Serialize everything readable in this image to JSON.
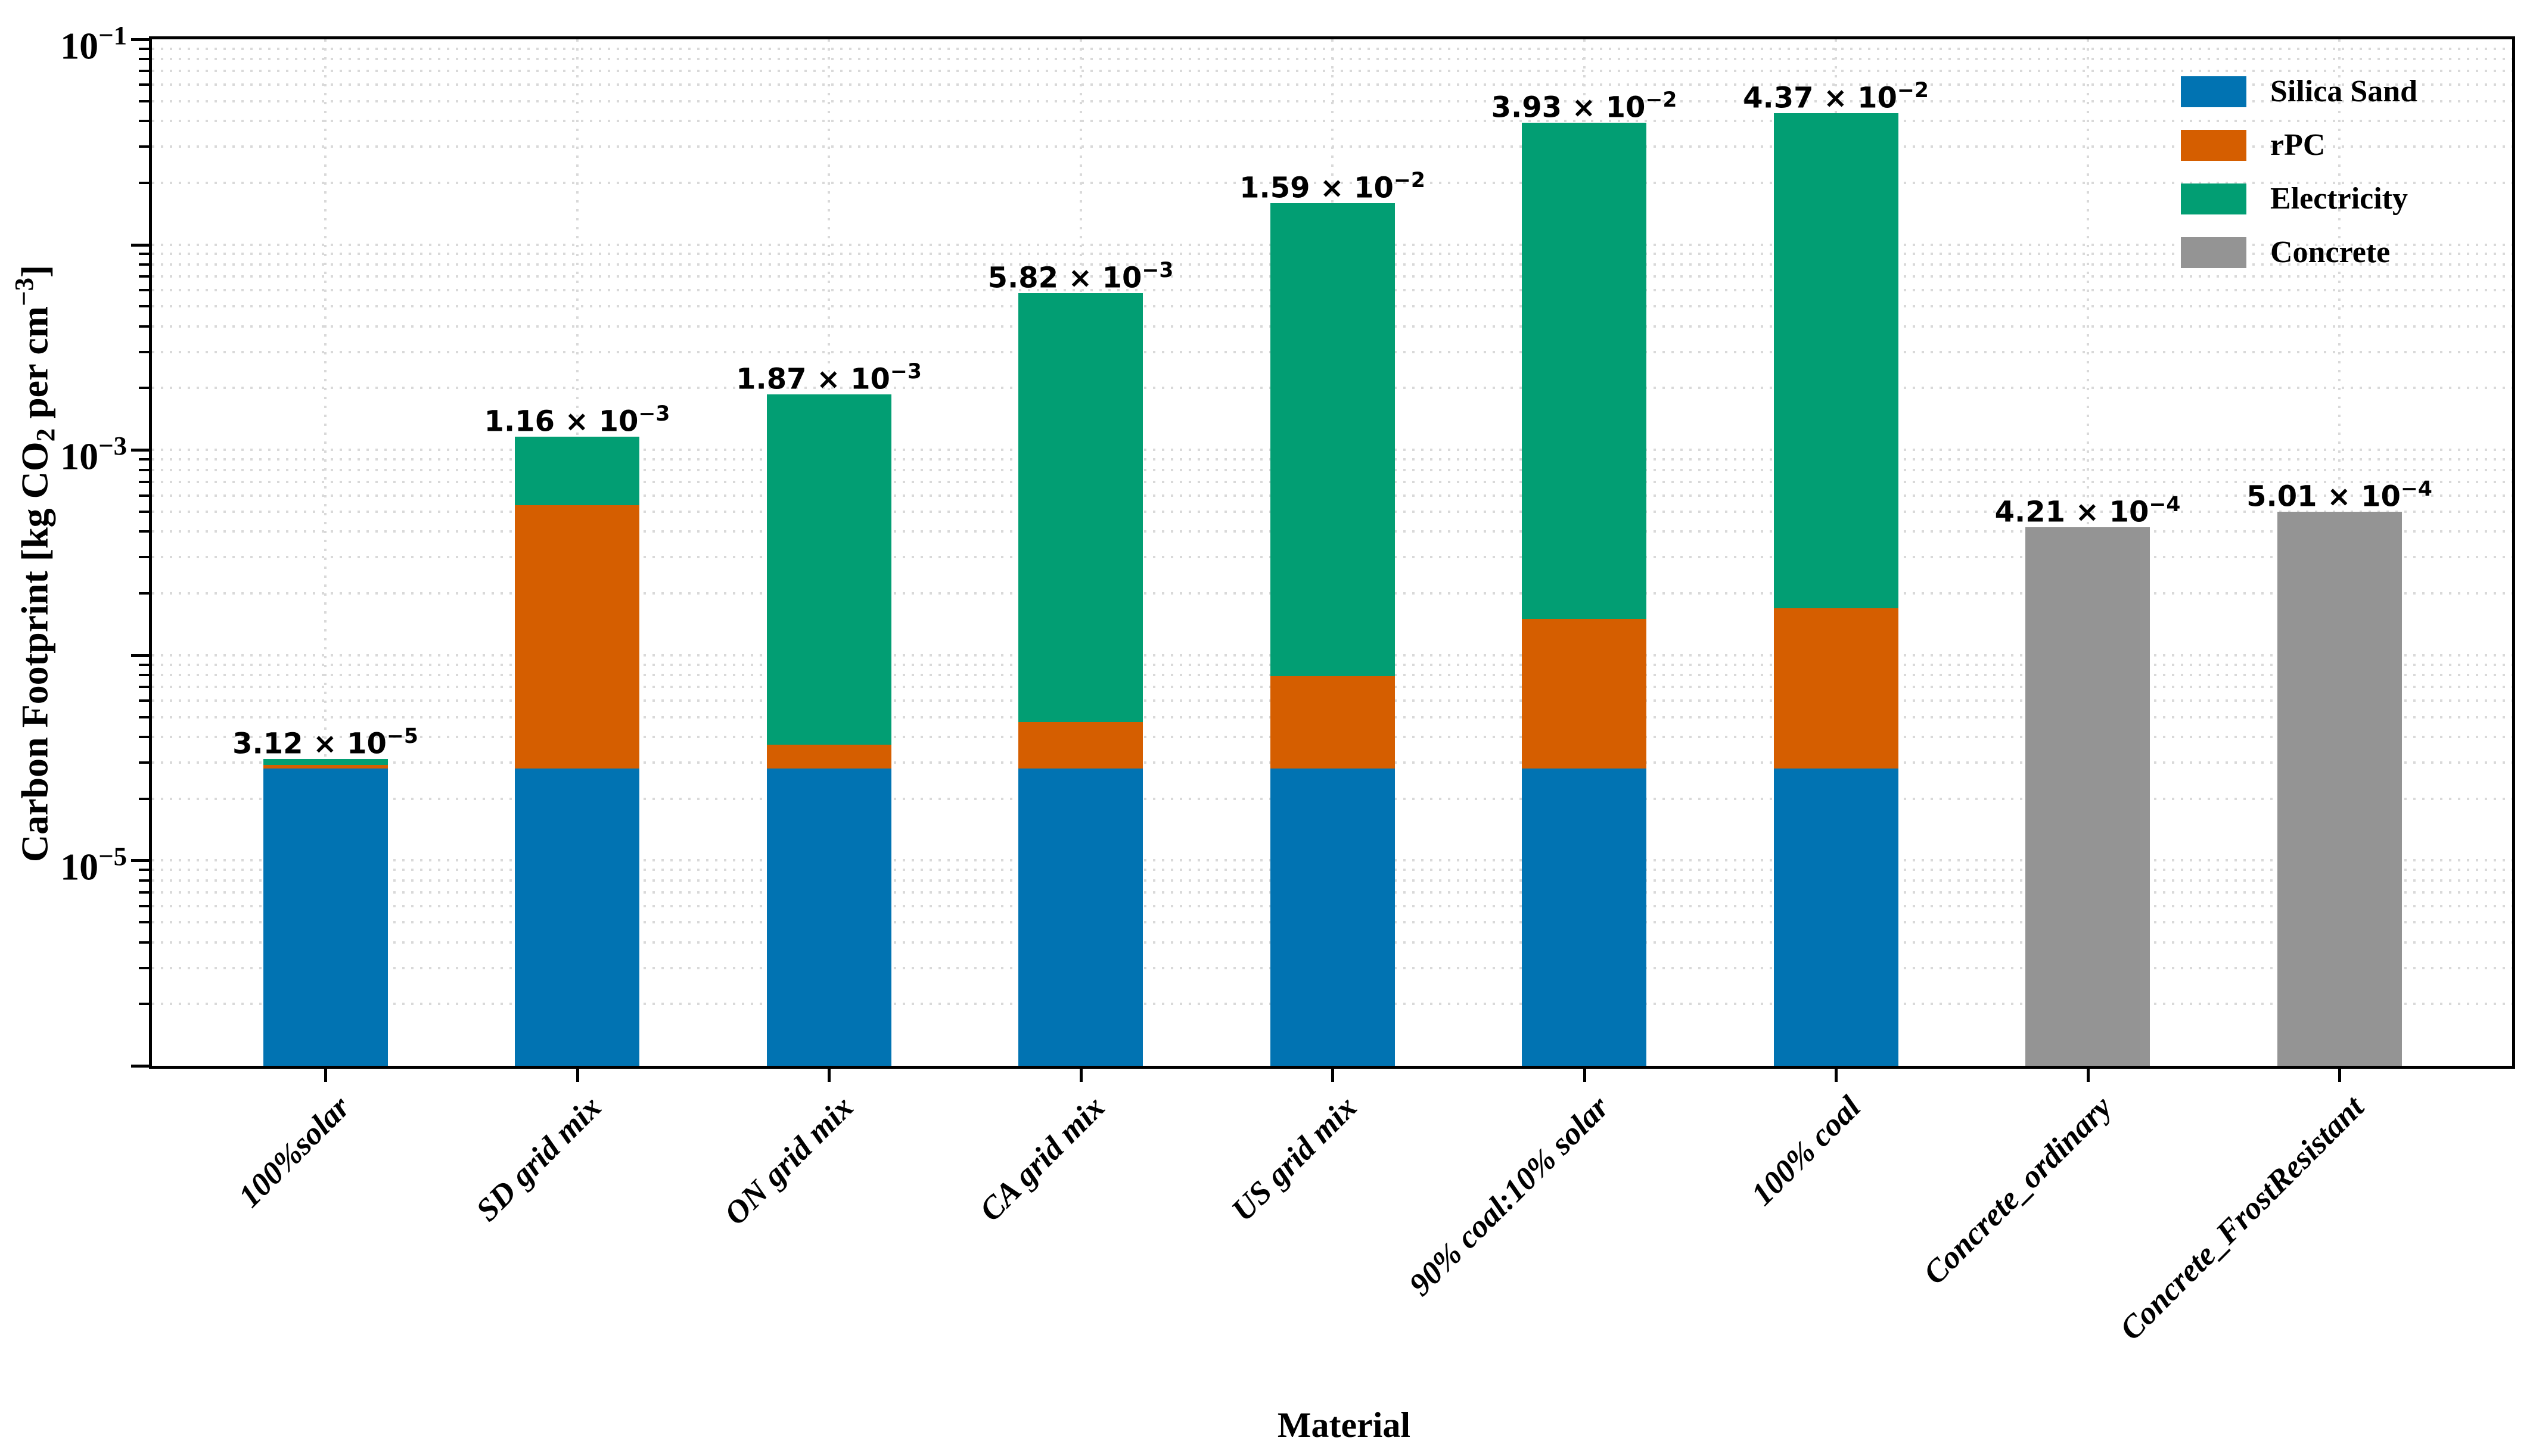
{
  "figure": {
    "background": "#ffffff"
  },
  "colors": {
    "spine": "#000000",
    "grid": "#d9d9d9",
    "text": "#000000"
  },
  "chart_data": {
    "type": "bar",
    "stacked": true,
    "y_scale": "log",
    "ylim": [
      1e-06,
      0.1
    ],
    "xlabel": "Material",
    "ylabel": "Carbon Footprint [kg CO2 per cm^-3]",
    "ylabel_rich": [
      [
        "t",
        "Carbon Footprint [kg CO"
      ],
      [
        "sub",
        "2"
      ],
      [
        "t",
        " per cm"
      ],
      [
        "sup",
        "−3"
      ],
      [
        "t",
        "]"
      ]
    ],
    "grid": {
      "horizontal": "dotted major+minor",
      "vertical": "dotted at categories"
    },
    "categories": [
      "100%solar",
      "SD grid mix",
      "ON grid mix",
      "CA grid mix",
      "US grid mix",
      "90% coal:10% solar",
      "100% coal",
      "Concrete_ordinary",
      "Concrete_FrostResistant"
    ],
    "series": [
      {
        "name": "Silica Sand",
        "color": "#0173b2",
        "values": [
          2.8e-05,
          2.8e-05,
          2.8e-05,
          2.8e-05,
          2.8e-05,
          2.8e-05,
          2.8e-05,
          0,
          0
        ]
      },
      {
        "name": "rPC",
        "color": "#d55e00",
        "values": [
          1.2e-06,
          0.000509,
          8.6e-06,
          1.93e-05,
          5.08e-05,
          0.000122,
          0.000141,
          0,
          0
        ]
      },
      {
        "name": "Electricity",
        "color": "#029e73",
        "values": [
          2e-06,
          0.000623,
          0.001833,
          0.005773,
          0.01582,
          0.03915,
          0.04353,
          0,
          0
        ]
      },
      {
        "name": "Concrete",
        "color": "#949494",
        "values": [
          0,
          0,
          0,
          0,
          0,
          0,
          0,
          0.000421,
          0.000501
        ]
      }
    ],
    "totals": [
      3.12e-05,
      0.00116,
      0.00187,
      0.00582,
      0.0159,
      0.0393,
      0.0437,
      0.000421,
      0.000501
    ],
    "bar_value_labels": [
      {
        "mantissa": "3.12",
        "exponent": "−5"
      },
      {
        "mantissa": "1.16",
        "exponent": "−3"
      },
      {
        "mantissa": "1.87",
        "exponent": "−3"
      },
      {
        "mantissa": "5.82",
        "exponent": "−3"
      },
      {
        "mantissa": "1.59",
        "exponent": "−2"
      },
      {
        "mantissa": "3.93",
        "exponent": "−2"
      },
      {
        "mantissa": "4.37",
        "exponent": "−2"
      },
      {
        "mantissa": "4.21",
        "exponent": "−4"
      },
      {
        "mantissa": "5.01",
        "exponent": "−4"
      }
    ],
    "yticks": [
      {
        "base": "10",
        "exponent": "−1",
        "value": 0.1
      },
      {
        "base": "10",
        "exponent": "−3",
        "value": 0.001
      },
      {
        "base": "10",
        "exponent": "−5",
        "value": 1e-05
      }
    ],
    "legend": {
      "position": "upper-right",
      "frame": false,
      "entries": [
        {
          "label": "Silica Sand",
          "color": "#0173b2"
        },
        {
          "label": "rPC",
          "color": "#d55e00"
        },
        {
          "label": "Electricity",
          "color": "#029e73"
        },
        {
          "label": "Concrete",
          "color": "#949494"
        }
      ]
    }
  }
}
